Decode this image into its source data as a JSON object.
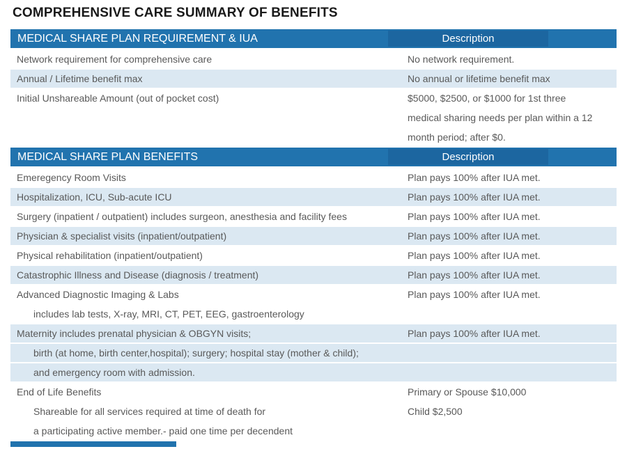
{
  "page": {
    "title": "COMPREHENSIVE CARE SUMMARY OF BENEFITS"
  },
  "colors": {
    "header_blue": "#2173AE",
    "header_description_cell_blue": "#1C66A0",
    "row_shade_blue": "#DBE8F2",
    "body_text_gray": "#595959",
    "title_black": "#1A1A1A"
  },
  "tables": [
    {
      "header": {
        "title": "MEDICAL SHARE PLAN REQUIREMENT & IUA",
        "description_label": "Description"
      },
      "rows": [
        {
          "shaded": false,
          "lines": [
            {
              "label": "Network requirement for comprehensive care",
              "indent": false,
              "value": "No network requirement."
            }
          ]
        },
        {
          "shaded": true,
          "lines": [
            {
              "label": "Annual / Lifetime benefit max",
              "indent": false,
              "value": "No annual or lifetime benefit max"
            }
          ]
        },
        {
          "shaded": false,
          "lines": [
            {
              "label": "Initial Unshareable Amount (out of pocket cost)",
              "indent": false,
              "value": "$5000, $2500, or $1000 for 1st three"
            },
            {
              "label": "",
              "indent": false,
              "value": "medical sharing needs per plan within a 12"
            },
            {
              "label": "",
              "indent": false,
              "value": "month period; after $0."
            }
          ]
        }
      ]
    },
    {
      "header": {
        "title": "MEDICAL SHARE PLAN BENEFITS",
        "description_label": "Description"
      },
      "rows": [
        {
          "shaded": false,
          "lines": [
            {
              "label": "Emeregency Room Visits",
              "indent": false,
              "value": "Plan pays 100% after IUA met."
            }
          ]
        },
        {
          "shaded": true,
          "lines": [
            {
              "label": "Hospitalization, ICU, Sub-acute ICU",
              "indent": false,
              "value": "Plan pays 100% after IUA met."
            }
          ]
        },
        {
          "shaded": false,
          "lines": [
            {
              "label": "Surgery (inpatient / outpatient) includes surgeon, anesthesia and facility fees",
              "indent": false,
              "value": "Plan pays 100% after IUA met."
            }
          ]
        },
        {
          "shaded": true,
          "lines": [
            {
              "label": "Physician & specialist visits (inpatient/outpatient)",
              "indent": false,
              "value": "Plan pays 100% after IUA met."
            }
          ]
        },
        {
          "shaded": false,
          "lines": [
            {
              "label": "Physical rehabilitation (inpatient/outpatient)",
              "indent": false,
              "value": "Plan pays 100% after IUA met."
            }
          ]
        },
        {
          "shaded": true,
          "lines": [
            {
              "label": "Catastrophic Illness and Disease (diagnosis / treatment)",
              "indent": false,
              "value": "Plan pays 100% after IUA met."
            }
          ]
        },
        {
          "shaded": false,
          "lines": [
            {
              "label": "Advanced Diagnostic Imaging & Labs",
              "indent": false,
              "value": "Plan pays 100% after IUA met."
            },
            {
              "label": "includes lab tests, X-ray, MRI, CT, PET, EEG, gastroenterology",
              "indent": true,
              "value": ""
            }
          ]
        },
        {
          "shaded": true,
          "lines": [
            {
              "label": "Maternity includes prenatal physician & OBGYN visits;",
              "indent": false,
              "value": "Plan pays 100% after IUA met."
            },
            {
              "label": "birth (at home, birth center,hospital); surgery; hospital stay (mother & child);",
              "indent": true,
              "value": ""
            },
            {
              "label": "and emergency room with admission.",
              "indent": true,
              "value": ""
            }
          ]
        },
        {
          "shaded": false,
          "lines": [
            {
              "label": "End of Life Benefits",
              "indent": false,
              "value": "Primary or Spouse $10,000"
            },
            {
              "label": "Shareable for all services required at time of death for",
              "indent": true,
              "value": "Child $2,500"
            },
            {
              "label": "a participating active member.- paid one time per decendent",
              "indent": true,
              "value": ""
            }
          ]
        }
      ]
    }
  ]
}
